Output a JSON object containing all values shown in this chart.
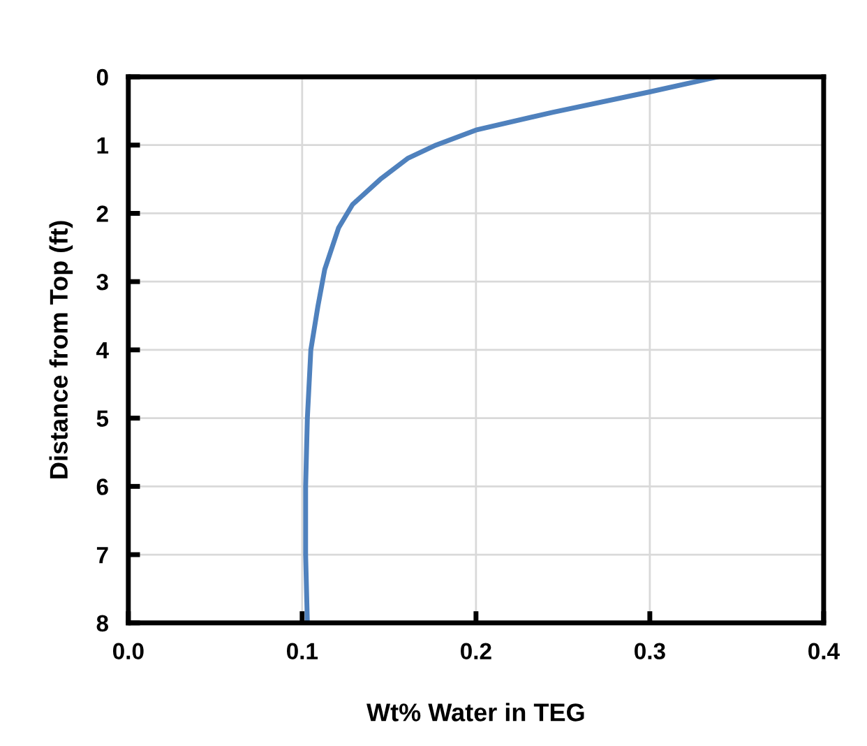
{
  "chart_data": {
    "type": "line",
    "xlabel": "Wt% Water in TEG",
    "ylabel": "Distance from Top (ft)",
    "xlim": [
      0,
      0.4
    ],
    "ylim": [
      8,
      0
    ],
    "xticks": [
      {
        "value": 0,
        "label": "0.0"
      },
      {
        "value": 0.1,
        "label": "0.1"
      },
      {
        "value": 0.2,
        "label": "0.2"
      },
      {
        "value": 0.3,
        "label": "0.3"
      },
      {
        "value": 0.4,
        "label": "0.4"
      }
    ],
    "yticks": [
      0,
      1,
      2,
      3,
      4,
      5,
      6,
      7,
      8
    ],
    "grid": true,
    "marker": "none",
    "line_style": "solid",
    "series": [
      {
        "color": "#4f81bd",
        "x": [
          0.339,
          0.3,
          0.244,
          0.2,
          0.177,
          0.161,
          0.145,
          0.129,
          0.121,
          0.113,
          0.109,
          0.105,
          0.103,
          0.102,
          0.102,
          0.103
        ],
        "values": [
          0,
          0.22,
          0.52,
          0.78,
          1.0,
          1.19,
          1.5,
          1.87,
          2.21,
          2.82,
          3.37,
          4.0,
          5.0,
          6.0,
          7.0,
          8.0
        ]
      }
    ]
  }
}
